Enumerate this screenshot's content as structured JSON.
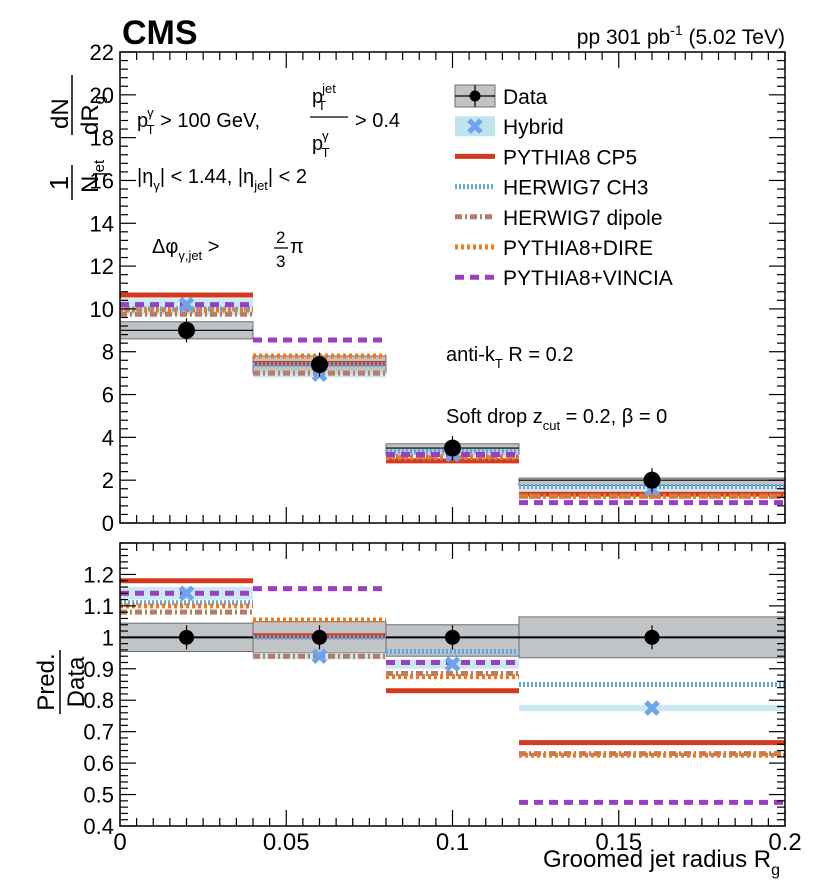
{
  "header": {
    "experiment": "CMS",
    "lumi_prefix": "pp 301 pb",
    "lumi_sup": "-1",
    "lumi_suffix": " (5.02 TeV)"
  },
  "colors": {
    "data": "#000000",
    "data_band": "#c0c4c6",
    "hybrid": "#6fa3f0",
    "hybrid_band": "#bfe6ee",
    "pythia_cp5": "#d43a1e",
    "herwig_ch3": "#5fa7e0",
    "herwig_dipole": "#b97a66",
    "pythia_dire": "#ee7a20",
    "pythia_vincia": "#9a3fc4"
  },
  "annotations": {
    "pt_cut": "p_T^γ > 100 GeV, p_T^jet / p_T^γ > 0.4",
    "eta_cut": "|η_γ| < 1.44, |η_jet| < 2",
    "dphi_cut": "Δφ_γ,jet > 2/3 π",
    "jet_algo": "anti-k_T R = 0.2",
    "soft_drop": "Soft drop z_cut = 0.2, β = 0"
  },
  "chart_data": [
    {
      "type": "bar",
      "panel": "top",
      "title": "",
      "xlabel": "Groomed jet radius R_g",
      "ylabel": "1/N_jet dN/dR_g",
      "bin_edges": [
        0,
        0.04,
        0.08,
        0.12,
        0.2
      ],
      "xlim": [
        0,
        0.2
      ],
      "ylim": [
        0,
        22
      ],
      "xticks": [
        "0",
        "0.05",
        "0.1",
        "0.15",
        "0.2"
      ],
      "yticks": [
        "0",
        "2",
        "4",
        "6",
        "8",
        "10",
        "12",
        "14",
        "16",
        "18",
        "20",
        "22"
      ],
      "legend": [
        "Data",
        "Hybrid",
        "PYTHIA8 CP5",
        "HERWIG7 CH3",
        "HERWIG7 dipole",
        "PYTHIA8+DIRE",
        "PYTHIA8+VINCIA"
      ],
      "series": [
        {
          "name": "Data",
          "values": [
            9.0,
            7.4,
            3.5,
            2.0
          ],
          "band_low": [
            8.6,
            7.0,
            3.2,
            1.75
          ],
          "band_high": [
            9.4,
            7.8,
            3.7,
            2.1
          ]
        },
        {
          "name": "Hybrid",
          "values": [
            10.2,
            6.95,
            3.2,
            1.6
          ],
          "band_low": [
            9.7,
            6.8,
            3.1,
            1.5
          ],
          "band_high": [
            10.5,
            7.1,
            3.3,
            1.65
          ]
        },
        {
          "name": "PYTHIA8 CP5",
          "values": [
            10.65,
            7.45,
            2.9,
            1.35
          ]
        },
        {
          "name": "HERWIG7 CH3",
          "values": [
            10.0,
            7.4,
            3.35,
            1.7
          ]
        },
        {
          "name": "HERWIG7 dipole",
          "values": [
            9.75,
            7.0,
            3.1,
            1.25
          ]
        },
        {
          "name": "PYTHIA8+DIRE",
          "values": [
            9.95,
            7.8,
            3.05,
            1.25
          ]
        },
        {
          "name": "PYTHIA8+VINCIA",
          "values": [
            10.2,
            8.55,
            3.2,
            0.95
          ]
        }
      ]
    },
    {
      "type": "bar",
      "panel": "ratio",
      "title": "",
      "xlabel": "Groomed jet radius R_g",
      "ylabel": "Pred./Data",
      "bin_edges": [
        0,
        0.04,
        0.08,
        0.12,
        0.2
      ],
      "xlim": [
        0,
        0.2
      ],
      "ylim": [
        0.4,
        1.3
      ],
      "xticks": [
        "0",
        "0.05",
        "0.1",
        "0.15",
        "0.2"
      ],
      "yticks": [
        "0.4",
        "0.5",
        "0.6",
        "0.7",
        "0.8",
        "0.9",
        "1",
        "1.1",
        "1.2"
      ],
      "series": [
        {
          "name": "Data",
          "values": [
            1.0,
            1.0,
            1.0,
            1.0
          ],
          "band_low": [
            0.955,
            0.95,
            0.94,
            0.935
          ],
          "band_high": [
            1.045,
            1.05,
            1.04,
            1.065
          ]
        },
        {
          "name": "Hybrid",
          "values": [
            1.14,
            0.94,
            0.915,
            0.775
          ],
          "band_low": [
            1.12,
            0.93,
            0.9,
            0.765
          ],
          "band_high": [
            1.16,
            0.95,
            0.93,
            0.785
          ]
        },
        {
          "name": "PYTHIA8 CP5",
          "values": [
            1.18,
            1.005,
            0.83,
            0.665
          ]
        },
        {
          "name": "HERWIG7 CH3",
          "values": [
            1.11,
            1.0,
            0.955,
            0.85
          ]
        },
        {
          "name": "HERWIG7 dipole",
          "values": [
            1.08,
            0.94,
            0.885,
            0.63
          ]
        },
        {
          "name": "PYTHIA8+DIRE",
          "values": [
            1.1,
            1.055,
            0.875,
            0.625
          ]
        },
        {
          "name": "PYTHIA8+VINCIA",
          "values": [
            1.14,
            1.155,
            0.92,
            0.475
          ]
        }
      ]
    }
  ]
}
